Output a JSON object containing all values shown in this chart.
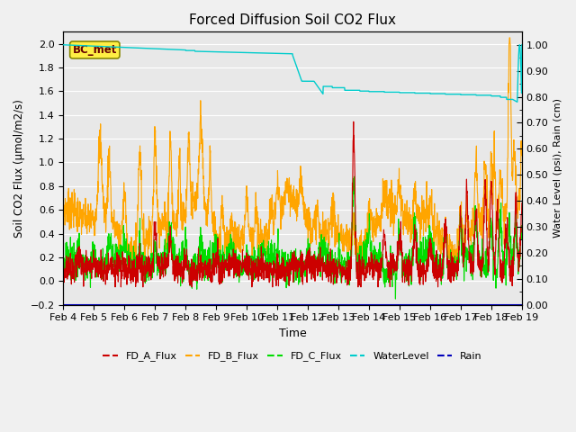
{
  "title": "Forced Diffusion Soil CO2 Flux",
  "xlabel": "Time",
  "ylabel_left": "Soil CO2 Flux (μmol/m2/s)",
  "ylabel_right": "Water Level (psi), Rain (cm)",
  "ylim_left": [
    -0.2,
    2.1
  ],
  "ylim_right": [
    0.0,
    1.05
  ],
  "x_tick_labels": [
    "Feb 4",
    "Feb 5",
    "Feb 6",
    "Feb 7",
    "Feb 8",
    "Feb 9",
    "Feb 10",
    "Feb 11",
    "Feb 12",
    "Feb 13",
    "Feb 14",
    "Feb 15",
    "Feb 16",
    "Feb 17",
    "Feb 18",
    "Feb 19"
  ],
  "background_color": "#f0f0f0",
  "plot_bg_color": "#e8e8e8",
  "grid_color": "white",
  "annotation_box": "BC_met",
  "legend_entries": [
    "FD_A_Flux",
    "FD_B_Flux",
    "FD_C_Flux",
    "WaterLevel",
    "Rain"
  ],
  "fd_a_color": "#cc0000",
  "fd_b_color": "#ffa500",
  "fd_c_color": "#00dd00",
  "water_color": "#00cccc",
  "rain_color": "#0000bb"
}
